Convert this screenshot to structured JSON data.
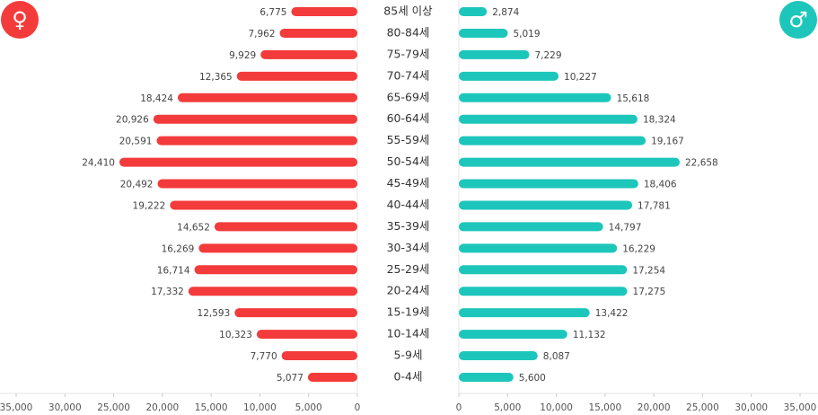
{
  "chart_data": {
    "type": "population-pyramid",
    "categories": [
      "85세 이상",
      "80-84세",
      "75-79세",
      "70-74세",
      "65-69세",
      "60-64세",
      "55-59세",
      "50-54세",
      "45-49세",
      "40-44세",
      "35-39세",
      "30-34세",
      "25-29세",
      "20-24세",
      "15-19세",
      "10-14세",
      "5-9세",
      "0-4세"
    ],
    "series": [
      {
        "name": "♀",
        "color": "#f43b3b",
        "side": "left",
        "values": [
          6775,
          7962,
          9929,
          12365,
          18424,
          20926,
          20591,
          24410,
          20492,
          19222,
          14652,
          16269,
          16714,
          17332,
          12593,
          10323,
          7770,
          5077
        ],
        "value_labels": [
          "6,775",
          "7,962",
          "9,929",
          "12,365",
          "18,424",
          "20,926",
          "20,591",
          "24,410",
          "20,492",
          "19,222",
          "14,652",
          "16,269",
          "16,714",
          "17,332",
          "12,593",
          "10,323",
          "7,770",
          "5,077"
        ]
      },
      {
        "name": "♂",
        "color": "#1dc6bb",
        "side": "right",
        "values": [
          2874,
          5019,
          7229,
          10227,
          15618,
          18324,
          19167,
          22658,
          18406,
          17781,
          14797,
          16229,
          17254,
          17275,
          13422,
          11132,
          8087,
          5600
        ],
        "value_labels": [
          "2,874",
          "5,019",
          "7,229",
          "10,227",
          "15,618",
          "18,324",
          "19,167",
          "22,658",
          "18,406",
          "17,781",
          "14,797",
          "16,229",
          "17,254",
          "17,275",
          "13,422",
          "11,132",
          "8,087",
          "5,600"
        ]
      }
    ],
    "xlim": [
      0,
      35000
    ],
    "xticks": [
      0,
      {
        "value": 5000,
        "label": "5,000"
      },
      {
        "value": 10000,
        "label": "10,000"
      },
      {
        "value": 15000,
        "label": "15,000"
      },
      {
        "value": 20000,
        "label": "20,000"
      },
      {
        "value": 25000,
        "label": "25,000"
      },
      {
        "value": 30000,
        "label": "30,000"
      },
      {
        "value": 35000,
        "label": "35,000"
      }
    ]
  }
}
